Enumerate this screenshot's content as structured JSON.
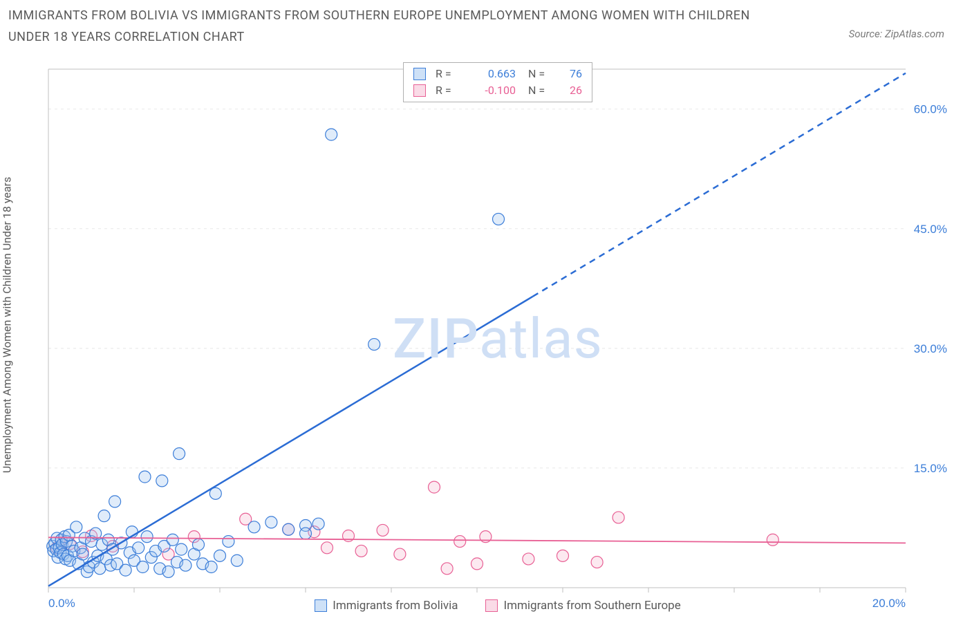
{
  "title": "IMMIGRANTS FROM BOLIVIA VS IMMIGRANTS FROM SOUTHERN EUROPE UNEMPLOYMENT AMONG WOMEN WITH CHILDREN UNDER 18 YEARS CORRELATION CHART",
  "source": "Source: ZipAtlas.com",
  "watermark_a": "ZIP",
  "watermark_b": "atlas",
  "y_axis_label": "Unemployment Among Women with Children Under 18 years",
  "chart": {
    "type": "scatter",
    "background_color": "#ffffff",
    "grid_color": "#e8e8e8",
    "border_color": "#bfbfbf",
    "xlim": [
      0,
      20
    ],
    "ylim": [
      0,
      65
    ],
    "x_ticks": [
      {
        "value": 0,
        "label": "0.0%",
        "color": "#3b7dd8"
      },
      {
        "value": 20,
        "label": "20.0%",
        "color": "#3b7dd8"
      }
    ],
    "y_ticks": [
      {
        "value": 15,
        "label": "15.0%",
        "color": "#3b7dd8"
      },
      {
        "value": 30,
        "label": "30.0%",
        "color": "#3b7dd8"
      },
      {
        "value": 45,
        "label": "45.0%",
        "color": "#3b7dd8"
      },
      {
        "value": 60,
        "label": "60.0%",
        "color": "#3b7dd8"
      }
    ],
    "y_gridlines": [
      15,
      30,
      45,
      60
    ],
    "marker_radius": 8.5,
    "marker_stroke_width": 1.2,
    "marker_fill_opacity": 0.32,
    "series": [
      {
        "id": "bolivia",
        "label": "Immigrants from Bolivia",
        "color_stroke": "#3b7dd8",
        "color_fill": "#9ec4f0",
        "r_value": "0.663",
        "n_value": "76",
        "trendline": {
          "color": "#2b6cd4",
          "width": 2.5,
          "solid": {
            "x1": 0,
            "y1": 0.2,
            "x2": 11.3,
            "y2": 36.5
          },
          "dashed": {
            "x1": 11.3,
            "y1": 36.5,
            "x2": 20.0,
            "y2": 64.5
          },
          "dash": "9,7"
        },
        "points": [
          [
            0.1,
            5.2
          ],
          [
            0.12,
            4.6
          ],
          [
            0.15,
            5.6
          ],
          [
            0.18,
            4.8
          ],
          [
            0.2,
            6.2
          ],
          [
            0.22,
            3.8
          ],
          [
            0.25,
            5.0
          ],
          [
            0.28,
            4.4
          ],
          [
            0.3,
            6.0
          ],
          [
            0.32,
            5.4
          ],
          [
            0.35,
            4.2
          ],
          [
            0.38,
            6.4
          ],
          [
            0.4,
            3.6
          ],
          [
            0.42,
            5.8
          ],
          [
            0.45,
            4.0
          ],
          [
            0.48,
            6.6
          ],
          [
            0.5,
            3.4
          ],
          [
            0.55,
            5.2
          ],
          [
            0.6,
            4.6
          ],
          [
            0.65,
            7.6
          ],
          [
            0.7,
            3.0
          ],
          [
            0.75,
            5.0
          ],
          [
            0.8,
            4.2
          ],
          [
            0.85,
            6.2
          ],
          [
            0.9,
            2.0
          ],
          [
            0.95,
            2.6
          ],
          [
            1.0,
            5.8
          ],
          [
            1.05,
            3.2
          ],
          [
            1.1,
            6.8
          ],
          [
            1.15,
            4.0
          ],
          [
            1.2,
            2.4
          ],
          [
            1.25,
            5.4
          ],
          [
            1.3,
            9.0
          ],
          [
            1.35,
            3.6
          ],
          [
            1.4,
            6.0
          ],
          [
            1.45,
            2.8
          ],
          [
            1.5,
            4.8
          ],
          [
            1.55,
            10.8
          ],
          [
            1.6,
            3.0
          ],
          [
            1.7,
            5.6
          ],
          [
            1.8,
            2.2
          ],
          [
            1.9,
            4.4
          ],
          [
            1.95,
            7.0
          ],
          [
            2.0,
            3.4
          ],
          [
            2.1,
            5.0
          ],
          [
            2.2,
            2.6
          ],
          [
            2.25,
            13.9
          ],
          [
            2.3,
            6.4
          ],
          [
            2.4,
            3.8
          ],
          [
            2.5,
            4.6
          ],
          [
            2.6,
            2.4
          ],
          [
            2.65,
            13.4
          ],
          [
            2.7,
            5.2
          ],
          [
            2.8,
            2.0
          ],
          [
            2.9,
            6.0
          ],
          [
            3.0,
            3.2
          ],
          [
            3.05,
            16.8
          ],
          [
            3.1,
            4.8
          ],
          [
            3.2,
            2.8
          ],
          [
            3.4,
            4.2
          ],
          [
            3.5,
            5.4
          ],
          [
            3.6,
            3.0
          ],
          [
            3.8,
            2.6
          ],
          [
            3.9,
            11.8
          ],
          [
            4.0,
            4.0
          ],
          [
            4.2,
            5.8
          ],
          [
            4.4,
            3.4
          ],
          [
            4.8,
            7.6
          ],
          [
            5.2,
            8.2
          ],
          [
            5.6,
            7.3
          ],
          [
            6.0,
            7.8
          ],
          [
            6.3,
            8.0
          ],
          [
            6.6,
            56.8
          ],
          [
            7.6,
            30.5
          ],
          [
            10.5,
            46.2
          ],
          [
            6.0,
            6.8
          ]
        ]
      },
      {
        "id": "southern_europe",
        "label": "Immigrants from Southern Europe",
        "color_stroke": "#e85f94",
        "color_fill": "#f5bad1",
        "r_value": "-0.100",
        "n_value": "26",
        "trendline": {
          "color": "#e85f94",
          "width": 1.8,
          "solid": {
            "x1": 0,
            "y1": 6.3,
            "x2": 20,
            "y2": 5.6
          }
        },
        "points": [
          [
            0.2,
            5.0
          ],
          [
            0.3,
            6.0
          ],
          [
            0.5,
            5.5
          ],
          [
            0.8,
            4.5
          ],
          [
            1.0,
            6.5
          ],
          [
            1.5,
            5.2
          ],
          [
            2.8,
            4.2
          ],
          [
            3.4,
            6.4
          ],
          [
            4.6,
            8.6
          ],
          [
            5.6,
            7.3
          ],
          [
            6.2,
            7.0
          ],
          [
            6.5,
            5.0
          ],
          [
            7.0,
            6.5
          ],
          [
            7.3,
            4.6
          ],
          [
            7.8,
            7.2
          ],
          [
            8.2,
            4.2
          ],
          [
            9.0,
            12.6
          ],
          [
            9.6,
            5.8
          ],
          [
            10.0,
            3.0
          ],
          [
            10.2,
            6.4
          ],
          [
            11.2,
            3.6
          ],
          [
            12.0,
            4.0
          ],
          [
            12.8,
            3.2
          ],
          [
            13.3,
            8.8
          ],
          [
            16.9,
            6.0
          ],
          [
            9.3,
            2.4
          ]
        ]
      }
    ]
  },
  "legend_top": {
    "r_label": "R =",
    "n_label": "N ="
  }
}
